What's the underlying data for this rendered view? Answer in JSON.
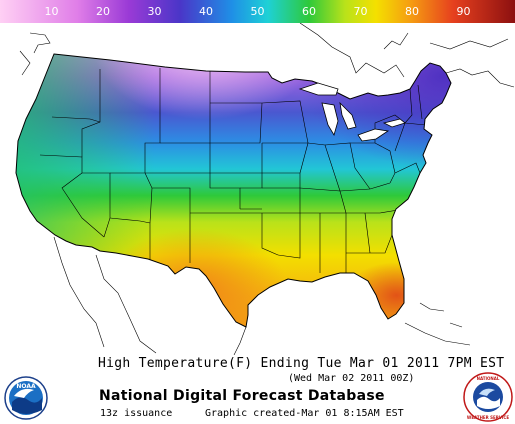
{
  "colorbar": {
    "ticks": [
      "10",
      "20",
      "30",
      "40",
      "50",
      "60",
      "70",
      "80",
      "90"
    ],
    "stops": [
      {
        "value": 0,
        "color": "#ffd0f4"
      },
      {
        "value": 15,
        "color": "#e07ee8"
      },
      {
        "value": 25,
        "color": "#9a3ad6"
      },
      {
        "value": 35,
        "color": "#4a36c8"
      },
      {
        "value": 45,
        "color": "#1f8fe6"
      },
      {
        "value": 52,
        "color": "#1ed1d6"
      },
      {
        "value": 60,
        "color": "#2ec93a"
      },
      {
        "value": 67,
        "color": "#b9e21a"
      },
      {
        "value": 73,
        "color": "#f4e000"
      },
      {
        "value": 80,
        "color": "#f59a12"
      },
      {
        "value": 88,
        "color": "#e6401e"
      },
      {
        "value": 100,
        "color": "#8c1010"
      }
    ]
  },
  "map": {
    "field": "High Temperature",
    "units": "F"
  },
  "footer": {
    "title": "High Temperature(F) Ending Tue Mar 01 2011  7PM EST",
    "subtitle": "(Wed Mar 02 2011 00Z)",
    "agency": "National Digital Forecast Database",
    "issuance": "13z issuance",
    "created": "Graphic created-Mar 01  8:15AM EST"
  },
  "logos": {
    "left": "NOAA",
    "right": "NATIONAL WEATHER SERVICE"
  }
}
